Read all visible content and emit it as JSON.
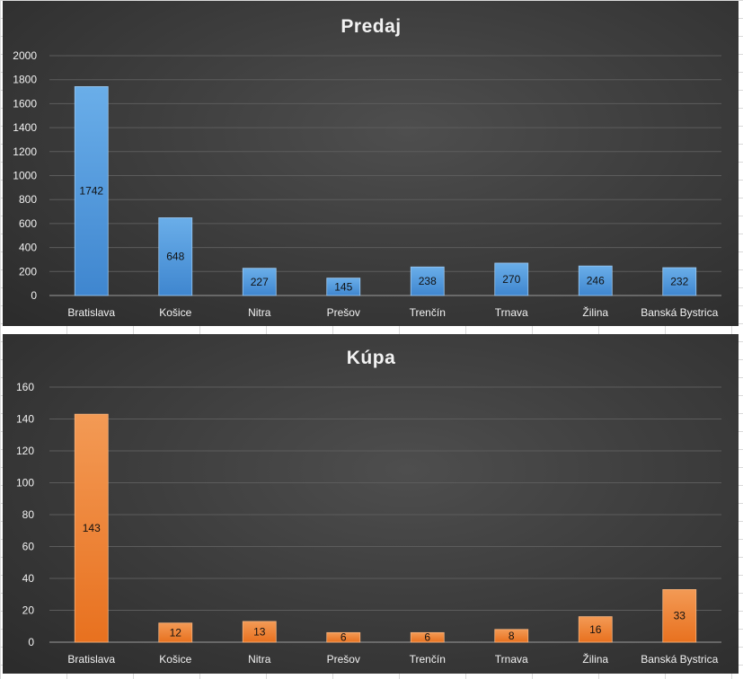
{
  "chart_data": [
    {
      "id": "predaj",
      "type": "bar",
      "title": "Predaj",
      "categories": [
        "Bratislava",
        "Košice",
        "Nitra",
        "Prešov",
        "Trenčín",
        "Trnava",
        "Žilina",
        "Banská Bystrica"
      ],
      "values": [
        1742,
        648,
        227,
        145,
        238,
        270,
        246,
        232
      ],
      "ylim": [
        0,
        2000
      ],
      "yticks": [
        0,
        200,
        400,
        600,
        800,
        1000,
        1200,
        1400,
        1600,
        1800,
        2000
      ],
      "grid": true,
      "legend": "none",
      "colors": {
        "bar_top": "#6aaee9",
        "bar_bottom": "#3f86cf",
        "bar_border": "#9cc9f2"
      }
    },
    {
      "id": "kupa",
      "type": "bar",
      "title": "Kúpa",
      "categories": [
        "Bratislava",
        "Košice",
        "Nitra",
        "Prešov",
        "Trenčín",
        "Trnava",
        "Žilina",
        "Banská Bystrica"
      ],
      "values": [
        143,
        12,
        13,
        6,
        6,
        8,
        16,
        33
      ],
      "ylim": [
        0,
        160
      ],
      "yticks": [
        0,
        20,
        40,
        60,
        80,
        100,
        120,
        140,
        160
      ],
      "grid": true,
      "legend": "none",
      "colors": {
        "bar_top": "#f39a55",
        "bar_bottom": "#e8711f",
        "bar_border": "#f7b27c"
      }
    }
  ]
}
